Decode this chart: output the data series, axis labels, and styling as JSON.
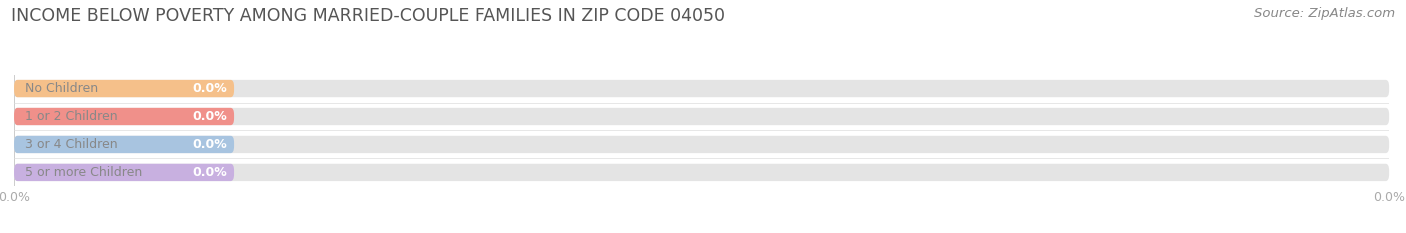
{
  "title": "INCOME BELOW POVERTY AMONG MARRIED-COUPLE FAMILIES IN ZIP CODE 04050",
  "source": "Source: ZipAtlas.com",
  "categories": [
    "No Children",
    "1 or 2 Children",
    "3 or 4 Children",
    "5 or more Children"
  ],
  "values": [
    0.0,
    0.0,
    0.0,
    0.0
  ],
  "bar_colors": [
    "#f5c08a",
    "#f0908a",
    "#a8c4e0",
    "#c8b0e0"
  ],
  "bar_bg_color": "#e4e4e4",
  "background_color": "#ffffff",
  "title_fontsize": 12.5,
  "source_fontsize": 9.5,
  "bar_label_fontsize": 9,
  "category_fontsize": 9,
  "category_text_color": "#888888",
  "value_text_color": "#ffffff",
  "tick_label_color": "#aaaaaa",
  "tick_fontsize": 9,
  "figwidth": 14.06,
  "figheight": 2.33,
  "dpi": 100,
  "min_colored_bar_width": 16,
  "xlim": [
    0,
    100
  ],
  "x_ticks": [
    0,
    100
  ],
  "x_tick_labels": [
    "0.0%",
    "0.0%"
  ]
}
